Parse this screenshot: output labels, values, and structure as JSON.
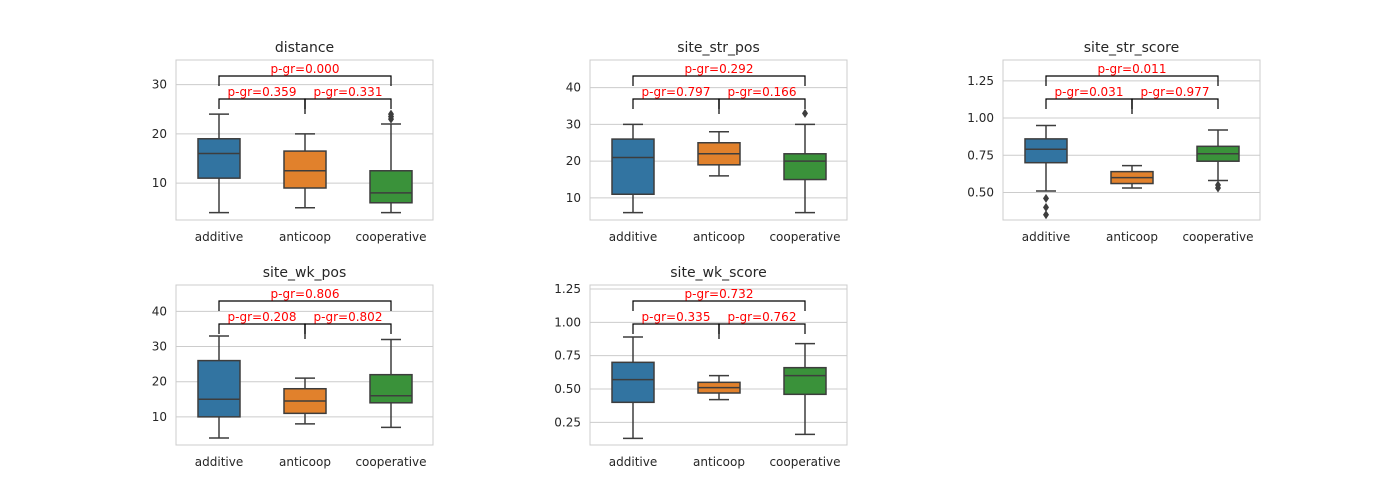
{
  "figure": {
    "background": "#ffffff",
    "grid": true,
    "grid_color": "#cccccc",
    "frame_color": "#cccccc"
  },
  "chart_data": [
    {
      "type": "box",
      "title": "distance",
      "categories": [
        "additive",
        "anticoop",
        "cooperative"
      ],
      "colors": [
        "#3274a1",
        "#e1812c",
        "#3a923a"
      ],
      "ylim": [
        2.5,
        35
      ],
      "yticks": [
        10,
        20,
        30
      ],
      "ytick_labels": [
        "10",
        "20",
        "30"
      ],
      "boxes": [
        {
          "whislo": 4,
          "q1": 11,
          "med": 16,
          "q3": 19,
          "whishi": 24,
          "fliers": []
        },
        {
          "whislo": 5,
          "q1": 9,
          "med": 12.5,
          "q3": 16.5,
          "whishi": 20,
          "fliers": []
        },
        {
          "whislo": 4,
          "q1": 6,
          "med": 8,
          "q3": 12.5,
          "whishi": 22,
          "fliers": [
            23,
            23.5,
            24
          ]
        }
      ],
      "annotations": [
        {
          "text": "p-gr=0.359",
          "from": 0,
          "to": 1,
          "level": 1
        },
        {
          "text": "p-gr=0.331",
          "from": 1,
          "to": 2,
          "level": 1
        },
        {
          "text": "p-gr=0.000",
          "from": 0,
          "to": 2,
          "level": 2
        }
      ]
    },
    {
      "type": "box",
      "title": "site_str_pos",
      "categories": [
        "additive",
        "anticoop",
        "cooperative"
      ],
      "colors": [
        "#3274a1",
        "#e1812c",
        "#3a923a"
      ],
      "ylim": [
        4,
        47.5
      ],
      "yticks": [
        10,
        20,
        30,
        40
      ],
      "ytick_labels": [
        "10",
        "20",
        "30",
        "40"
      ],
      "boxes": [
        {
          "whislo": 6,
          "q1": 11,
          "med": 21,
          "q3": 26,
          "whishi": 30,
          "fliers": []
        },
        {
          "whislo": 16,
          "q1": 19,
          "med": 22,
          "q3": 25,
          "whishi": 28,
          "fliers": []
        },
        {
          "whislo": 6,
          "q1": 15,
          "med": 20,
          "q3": 22,
          "whishi": 30,
          "fliers": [
            33
          ]
        }
      ],
      "annotations": [
        {
          "text": "p-gr=0.797",
          "from": 0,
          "to": 1,
          "level": 1
        },
        {
          "text": "p-gr=0.166",
          "from": 1,
          "to": 2,
          "level": 1
        },
        {
          "text": "p-gr=0.292",
          "from": 0,
          "to": 2,
          "level": 2
        }
      ]
    },
    {
      "type": "box",
      "title": "site_str_score",
      "categories": [
        "additive",
        "anticoop",
        "cooperative"
      ],
      "colors": [
        "#3274a1",
        "#e1812c",
        "#3a923a"
      ],
      "ylim": [
        0.315,
        1.39
      ],
      "yticks": [
        0.5,
        0.75,
        1.0,
        1.25
      ],
      "ytick_labels": [
        "0.50",
        "0.75",
        "1.00",
        "1.25"
      ],
      "boxes": [
        {
          "whislo": 0.51,
          "q1": 0.7,
          "med": 0.79,
          "q3": 0.86,
          "whishi": 0.95,
          "fliers": [
            0.35,
            0.4,
            0.46
          ]
        },
        {
          "whislo": 0.53,
          "q1": 0.56,
          "med": 0.6,
          "q3": 0.64,
          "whishi": 0.68,
          "fliers": []
        },
        {
          "whislo": 0.58,
          "q1": 0.71,
          "med": 0.76,
          "q3": 0.81,
          "whishi": 0.92,
          "fliers": [
            0.53,
            0.55
          ]
        }
      ],
      "annotations": [
        {
          "text": "p-gr=0.031",
          "from": 0,
          "to": 1,
          "level": 1
        },
        {
          "text": "p-gr=0.977",
          "from": 1,
          "to": 2,
          "level": 1
        },
        {
          "text": "p-gr=0.011",
          "from": 0,
          "to": 2,
          "level": 2
        }
      ]
    },
    {
      "type": "box",
      "title": "site_wk_pos",
      "categories": [
        "additive",
        "anticoop",
        "cooperative"
      ],
      "colors": [
        "#3274a1",
        "#e1812c",
        "#3a923a"
      ],
      "ylim": [
        2,
        47.5
      ],
      "yticks": [
        10,
        20,
        30,
        40
      ],
      "ytick_labels": [
        "10",
        "20",
        "30",
        "40"
      ],
      "boxes": [
        {
          "whislo": 4,
          "q1": 10,
          "med": 15,
          "q3": 26,
          "whishi": 33,
          "fliers": []
        },
        {
          "whislo": 8,
          "q1": 11,
          "med": 14.5,
          "q3": 18,
          "whishi": 21,
          "fliers": []
        },
        {
          "whislo": 7,
          "q1": 14,
          "med": 16,
          "q3": 22,
          "whishi": 32,
          "fliers": []
        }
      ],
      "annotations": [
        {
          "text": "p-gr=0.208",
          "from": 0,
          "to": 1,
          "level": 1
        },
        {
          "text": "p-gr=0.802",
          "from": 1,
          "to": 2,
          "level": 1
        },
        {
          "text": "p-gr=0.806",
          "from": 0,
          "to": 2,
          "level": 2
        }
      ]
    },
    {
      "type": "box",
      "title": "site_wk_score",
      "categories": [
        "additive",
        "anticoop",
        "cooperative"
      ],
      "colors": [
        "#3274a1",
        "#e1812c",
        "#3a923a"
      ],
      "ylim": [
        0.08,
        1.28
      ],
      "yticks": [
        0.25,
        0.5,
        0.75,
        1.0,
        1.25
      ],
      "ytick_labels": [
        "0.25",
        "0.50",
        "0.75",
        "1.00",
        "1.25"
      ],
      "boxes": [
        {
          "whislo": 0.13,
          "q1": 0.4,
          "med": 0.57,
          "q3": 0.7,
          "whishi": 0.89,
          "fliers": []
        },
        {
          "whislo": 0.42,
          "q1": 0.47,
          "med": 0.51,
          "q3": 0.55,
          "whishi": 0.6,
          "fliers": []
        },
        {
          "whislo": 0.16,
          "q1": 0.46,
          "med": 0.6,
          "q3": 0.66,
          "whishi": 0.84,
          "fliers": []
        }
      ],
      "annotations": [
        {
          "text": "p-gr=0.335",
          "from": 0,
          "to": 1,
          "level": 1
        },
        {
          "text": "p-gr=0.762",
          "from": 1,
          "to": 2,
          "level": 1
        },
        {
          "text": "p-gr=0.732",
          "from": 0,
          "to": 2,
          "level": 2
        }
      ]
    }
  ]
}
